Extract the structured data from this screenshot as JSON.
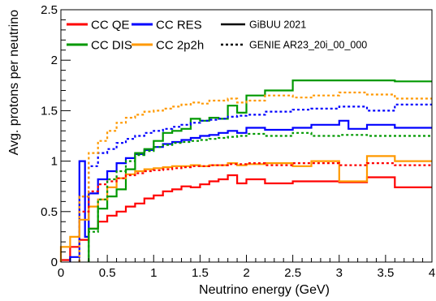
{
  "chart_data": {
    "type": "line",
    "xlabel": "Neutrino energy (GeV)",
    "ylabel": "Avg. protons per neutrino",
    "xlim": [
      0,
      4
    ],
    "ylim": [
      0,
      2.5
    ],
    "x_ticks": [
      0,
      0.5,
      1,
      1.5,
      2,
      2.5,
      3,
      3.5,
      4
    ],
    "x_tick_labels": [
      "0",
      "0.5",
      "1",
      "1.5",
      "2",
      "2.5",
      "3",
      "3.5",
      "4"
    ],
    "y_ticks": [
      0,
      0.5,
      1,
      1.5,
      2,
      2.5
    ],
    "y_tick_labels": [
      "0",
      "0.5",
      "1",
      "1.5",
      "2",
      "2.5"
    ],
    "grid": false,
    "legend_position": "top",
    "legend_models": [
      {
        "label": "GiBUU 2021",
        "style": "solid"
      },
      {
        "label": "GENIE AR23_20i_00_000",
        "style": "dotted"
      }
    ],
    "series": [
      {
        "name": "CC QE",
        "color": "#ff0000",
        "style": "solid",
        "bins": [
          [
            0,
            0.1,
            0.02
          ],
          [
            0.1,
            0.2,
            0.15
          ],
          [
            0.2,
            0.3,
            0.22
          ],
          [
            0.3,
            0.4,
            0.33
          ],
          [
            0.4,
            0.5,
            0.4
          ],
          [
            0.5,
            0.6,
            0.46
          ],
          [
            0.6,
            0.7,
            0.5
          ],
          [
            0.7,
            0.8,
            0.55
          ],
          [
            0.8,
            0.9,
            0.58
          ],
          [
            0.9,
            1.0,
            0.63
          ],
          [
            1.0,
            1.1,
            0.66
          ],
          [
            1.1,
            1.2,
            0.7
          ],
          [
            1.2,
            1.3,
            0.72
          ],
          [
            1.3,
            1.4,
            0.75
          ],
          [
            1.4,
            1.5,
            0.74
          ],
          [
            1.5,
            1.6,
            0.77
          ],
          [
            1.6,
            1.7,
            0.8
          ],
          [
            1.7,
            1.8,
            0.82
          ],
          [
            1.8,
            1.9,
            0.86
          ],
          [
            1.9,
            2.0,
            0.78
          ],
          [
            2.0,
            2.2,
            0.82
          ],
          [
            2.2,
            2.5,
            0.78
          ],
          [
            2.5,
            2.7,
            0.8
          ],
          [
            2.7,
            3.0,
            0.8
          ],
          [
            3.0,
            3.3,
            0.79
          ],
          [
            3.3,
            3.6,
            0.84
          ],
          [
            3.6,
            4.0,
            0.74
          ]
        ]
      },
      {
        "name": "CC RES",
        "color": "#0000ff",
        "style": "solid",
        "bins": [
          [
            0.1,
            0.2,
            0.05
          ],
          [
            0.2,
            0.26,
            1.0
          ],
          [
            0.26,
            0.3,
            0.25
          ],
          [
            0.3,
            0.4,
            0.68
          ],
          [
            0.4,
            0.5,
            0.82
          ],
          [
            0.5,
            0.6,
            0.9
          ],
          [
            0.6,
            0.7,
            0.98
          ],
          [
            0.7,
            0.8,
            1.03
          ],
          [
            0.8,
            0.9,
            1.07
          ],
          [
            0.9,
            1.0,
            1.11
          ],
          [
            1.0,
            1.1,
            1.14
          ],
          [
            1.1,
            1.2,
            1.17
          ],
          [
            1.2,
            1.3,
            1.19
          ],
          [
            1.3,
            1.4,
            1.21
          ],
          [
            1.4,
            1.5,
            1.23
          ],
          [
            1.5,
            1.6,
            1.25
          ],
          [
            1.6,
            1.7,
            1.26
          ],
          [
            1.7,
            1.8,
            1.28
          ],
          [
            1.8,
            1.9,
            1.3
          ],
          [
            1.9,
            2.0,
            1.28
          ],
          [
            2.0,
            2.2,
            1.33
          ],
          [
            2.2,
            2.5,
            1.31
          ],
          [
            2.5,
            2.7,
            1.33
          ],
          [
            2.7,
            3.0,
            1.36
          ],
          [
            3.0,
            3.1,
            1.4
          ],
          [
            3.1,
            3.3,
            1.32
          ],
          [
            3.3,
            3.6,
            1.36
          ],
          [
            3.6,
            4.0,
            1.33
          ]
        ]
      },
      {
        "name": "CC DIS",
        "color": "#009900",
        "style": "solid",
        "bins": [
          [
            0.3,
            0.4,
            0.33
          ],
          [
            0.4,
            0.5,
            0.53
          ],
          [
            0.5,
            0.6,
            0.65
          ],
          [
            0.6,
            0.7,
            0.72
          ],
          [
            0.7,
            0.8,
            0.92
          ],
          [
            0.8,
            0.9,
            1.08
          ],
          [
            0.9,
            1.0,
            1.12
          ],
          [
            1.0,
            1.1,
            1.2
          ],
          [
            1.1,
            1.2,
            1.28
          ],
          [
            1.2,
            1.3,
            1.3
          ],
          [
            1.3,
            1.4,
            1.32
          ],
          [
            1.4,
            1.5,
            1.42
          ],
          [
            1.5,
            1.6,
            1.4
          ],
          [
            1.6,
            1.7,
            1.43
          ],
          [
            1.7,
            1.8,
            1.42
          ],
          [
            1.8,
            1.9,
            1.55
          ],
          [
            1.9,
            2.0,
            1.48
          ],
          [
            2.0,
            2.2,
            1.65
          ],
          [
            2.2,
            2.5,
            1.7
          ],
          [
            2.5,
            3.0,
            1.8
          ],
          [
            3.0,
            3.6,
            1.8
          ],
          [
            3.6,
            4.0,
            1.79
          ]
        ]
      },
      {
        "name": "CC 2p2h",
        "color": "#ff9900",
        "style": "solid",
        "bins": [
          [
            0,
            0.1,
            0.15
          ],
          [
            0.1,
            0.2,
            0.25
          ],
          [
            0.2,
            0.3,
            0.42
          ],
          [
            0.3,
            0.4,
            0.55
          ],
          [
            0.4,
            0.5,
            0.62
          ],
          [
            0.5,
            0.6,
            0.74
          ],
          [
            0.6,
            0.7,
            0.83
          ],
          [
            0.7,
            0.8,
            0.87
          ],
          [
            0.8,
            0.9,
            0.9
          ],
          [
            0.9,
            1.0,
            0.92
          ],
          [
            1.0,
            1.1,
            0.93
          ],
          [
            1.1,
            1.2,
            0.94
          ],
          [
            1.2,
            1.3,
            0.95
          ],
          [
            1.3,
            1.4,
            0.95
          ],
          [
            1.4,
            1.5,
            0.96
          ],
          [
            1.5,
            1.6,
            0.95
          ],
          [
            1.6,
            1.7,
            0.96
          ],
          [
            1.7,
            1.8,
            0.96
          ],
          [
            1.8,
            1.9,
            0.98
          ],
          [
            1.9,
            2.0,
            0.96
          ],
          [
            2.0,
            2.2,
            0.97
          ],
          [
            2.2,
            2.5,
            0.98
          ],
          [
            2.5,
            2.7,
            0.95
          ],
          [
            2.7,
            3.0,
            1.0
          ],
          [
            3.0,
            3.3,
            0.8
          ],
          [
            3.3,
            3.6,
            1.05
          ],
          [
            3.6,
            4.0,
            1.0
          ]
        ]
      },
      {
        "name": "CC QE",
        "color": "#ff0000",
        "style": "dotted",
        "bins": [
          [
            0.2,
            0.3,
            0.5
          ],
          [
            0.3,
            0.4,
            0.7
          ],
          [
            0.4,
            0.5,
            0.77
          ],
          [
            0.5,
            0.6,
            0.8
          ],
          [
            0.6,
            0.7,
            0.83
          ],
          [
            0.7,
            0.8,
            0.86
          ],
          [
            0.8,
            0.9,
            0.88
          ],
          [
            0.9,
            1.0,
            0.9
          ],
          [
            1.0,
            1.1,
            0.91
          ],
          [
            1.1,
            1.2,
            0.92
          ],
          [
            1.2,
            1.3,
            0.93
          ],
          [
            1.3,
            1.4,
            0.94
          ],
          [
            1.4,
            1.5,
            0.95
          ],
          [
            1.5,
            1.6,
            0.95
          ],
          [
            1.6,
            1.7,
            0.96
          ],
          [
            1.7,
            1.8,
            0.96
          ],
          [
            1.8,
            1.9,
            0.97
          ],
          [
            1.9,
            2.0,
            0.97
          ],
          [
            2.0,
            2.2,
            0.98
          ],
          [
            2.2,
            2.5,
            0.96
          ],
          [
            2.5,
            2.7,
            0.98
          ],
          [
            2.7,
            3.0,
            0.98
          ],
          [
            3.0,
            3.3,
            0.96
          ],
          [
            3.3,
            3.6,
            0.98
          ],
          [
            3.6,
            4.0,
            0.96
          ]
        ]
      },
      {
        "name": "CC RES",
        "color": "#0000ff",
        "style": "dotted",
        "bins": [
          [
            0.2,
            0.3,
            0.65
          ],
          [
            0.3,
            0.4,
            0.95
          ],
          [
            0.4,
            0.5,
            1.08
          ],
          [
            0.5,
            0.6,
            1.12
          ],
          [
            0.6,
            0.7,
            1.18
          ],
          [
            0.7,
            0.8,
            1.22
          ],
          [
            0.8,
            0.9,
            1.25
          ],
          [
            0.9,
            1.0,
            1.28
          ],
          [
            1.0,
            1.1,
            1.3
          ],
          [
            1.1,
            1.2,
            1.32
          ],
          [
            1.2,
            1.3,
            1.34
          ],
          [
            1.3,
            1.4,
            1.36
          ],
          [
            1.4,
            1.5,
            1.38
          ],
          [
            1.5,
            1.6,
            1.4
          ],
          [
            1.6,
            1.7,
            1.41
          ],
          [
            1.7,
            1.8,
            1.42
          ],
          [
            1.8,
            1.9,
            1.44
          ],
          [
            1.9,
            2.0,
            1.45
          ],
          [
            2.0,
            2.2,
            1.46
          ],
          [
            2.2,
            2.5,
            1.49
          ],
          [
            2.5,
            2.7,
            1.51
          ],
          [
            2.7,
            3.0,
            1.52
          ],
          [
            3.0,
            3.3,
            1.54
          ],
          [
            3.3,
            3.6,
            1.5
          ],
          [
            3.6,
            4.0,
            1.56
          ]
        ]
      },
      {
        "name": "CC DIS",
        "color": "#009900",
        "style": "dotted",
        "bins": [
          [
            0.3,
            0.4,
            0.3
          ],
          [
            0.4,
            0.5,
            0.62
          ],
          [
            0.5,
            0.6,
            0.82
          ],
          [
            0.6,
            0.7,
            0.9
          ],
          [
            0.7,
            0.8,
            1.0
          ],
          [
            0.8,
            0.9,
            1.06
          ],
          [
            0.9,
            1.0,
            1.1
          ],
          [
            1.0,
            1.1,
            1.14
          ],
          [
            1.1,
            1.2,
            1.16
          ],
          [
            1.2,
            1.3,
            1.18
          ],
          [
            1.3,
            1.4,
            1.19
          ],
          [
            1.4,
            1.5,
            1.2
          ],
          [
            1.5,
            1.6,
            1.21
          ],
          [
            1.6,
            1.7,
            1.22
          ],
          [
            1.7,
            1.8,
            1.23
          ],
          [
            1.8,
            1.9,
            1.24
          ],
          [
            1.9,
            2.0,
            1.25
          ],
          [
            2.0,
            2.2,
            1.27
          ],
          [
            2.2,
            2.5,
            1.25
          ],
          [
            2.5,
            2.7,
            1.28
          ],
          [
            2.7,
            3.0,
            1.25
          ],
          [
            3.0,
            3.3,
            1.26
          ],
          [
            3.3,
            3.6,
            1.25
          ],
          [
            3.6,
            4.0,
            1.25
          ]
        ]
      },
      {
        "name": "CC 2p2h",
        "color": "#ff9900",
        "style": "dotted",
        "bins": [
          [
            0.2,
            0.3,
            0.65
          ],
          [
            0.3,
            0.4,
            1.08
          ],
          [
            0.4,
            0.5,
            1.2
          ],
          [
            0.5,
            0.6,
            1.3
          ],
          [
            0.6,
            0.7,
            1.38
          ],
          [
            0.7,
            0.8,
            1.43
          ],
          [
            0.8,
            0.9,
            1.46
          ],
          [
            0.9,
            1.0,
            1.49
          ],
          [
            1.0,
            1.1,
            1.5
          ],
          [
            1.1,
            1.2,
            1.52
          ],
          [
            1.2,
            1.3,
            1.54
          ],
          [
            1.3,
            1.4,
            1.56
          ],
          [
            1.4,
            1.5,
            1.58
          ],
          [
            1.5,
            1.6,
            1.57
          ],
          [
            1.6,
            1.7,
            1.6
          ],
          [
            1.7,
            1.8,
            1.6
          ],
          [
            1.8,
            1.9,
            1.62
          ],
          [
            1.9,
            2.0,
            1.58
          ],
          [
            2.0,
            2.2,
            1.6
          ],
          [
            2.2,
            2.5,
            1.65
          ],
          [
            2.5,
            2.7,
            1.63
          ],
          [
            2.7,
            3.0,
            1.65
          ],
          [
            3.0,
            3.3,
            1.68
          ],
          [
            3.3,
            3.6,
            1.66
          ],
          [
            3.6,
            4.0,
            1.62
          ]
        ]
      }
    ]
  }
}
